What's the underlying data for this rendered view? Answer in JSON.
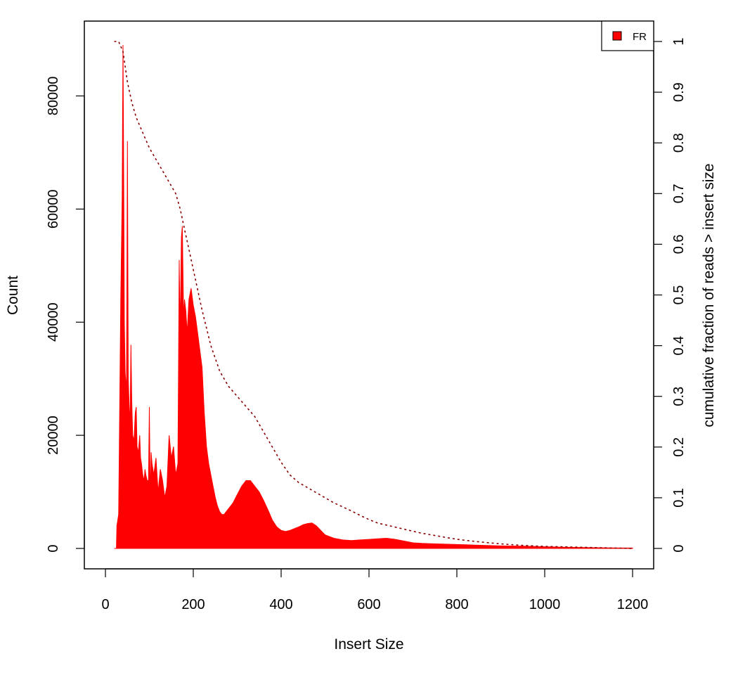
{
  "chart_data": {
    "type": "area",
    "title": "",
    "xlabel": "Insert Size",
    "ylabel": "Count",
    "y2label": "cumulative fraction of reads > insert size",
    "xlim": [
      0,
      1200
    ],
    "ylim": [
      0,
      90000
    ],
    "y2lim": [
      0,
      1
    ],
    "grid": false,
    "legend": {
      "position": "top-right",
      "entries": [
        {
          "name": "FR",
          "color": "#ff0000"
        }
      ]
    },
    "x_ticks": [
      "0",
      "200",
      "400",
      "600",
      "800",
      "1000",
      "1200"
    ],
    "y_ticks": [
      "0",
      "20000",
      "40000",
      "60000",
      "80000"
    ],
    "y2_ticks": [
      "0",
      "0.1",
      "0.2",
      "0.3",
      "0.4",
      "0.5",
      "0.6",
      "0.7",
      "0.8",
      "0.9",
      "1"
    ],
    "series": [
      {
        "name": "FR",
        "color": "#ff0000",
        "axis": "left",
        "style": "filled-histogram",
        "x": [
          20,
          25,
          26,
          30,
          32,
          35,
          38,
          40,
          42,
          43,
          45,
          48,
          50,
          52,
          54,
          56,
          58,
          60,
          62,
          65,
          68,
          70,
          72,
          75,
          78,
          80,
          82,
          85,
          88,
          90,
          92,
          95,
          98,
          100,
          102,
          104,
          106,
          110,
          115,
          120,
          125,
          130,
          135,
          140,
          145,
          150,
          155,
          160,
          165,
          168,
          170,
          173,
          175,
          178,
          180,
          183,
          186,
          190,
          195,
          200,
          205,
          210,
          215,
          220,
          225,
          230,
          235,
          240,
          245,
          250,
          255,
          260,
          265,
          270,
          280,
          290,
          300,
          310,
          320,
          330,
          340,
          350,
          360,
          370,
          380,
          390,
          400,
          410,
          420,
          430,
          440,
          450,
          460,
          470,
          480,
          490,
          500,
          520,
          540,
          560,
          580,
          600,
          620,
          640,
          660,
          680,
          700,
          720,
          740,
          760,
          780,
          800,
          820,
          840,
          860,
          880,
          900,
          950,
          1000,
          1050,
          1100,
          1150,
          1200
        ],
        "y": [
          0,
          0,
          4000,
          6000,
          21000,
          45000,
          62000,
          89000,
          58000,
          40000,
          31000,
          28000,
          72000,
          30000,
          25000,
          22000,
          36000,
          26000,
          20000,
          19000,
          24000,
          25000,
          18000,
          17000,
          20000,
          16000,
          15000,
          13000,
          12000,
          14000,
          13000,
          12000,
          12000,
          25000,
          8000,
          17000,
          15000,
          13000,
          16000,
          10000,
          14000,
          12000,
          9000,
          11000,
          20000,
          16000,
          18000,
          13000,
          15000,
          51000,
          38000,
          55000,
          57000,
          40000,
          44000,
          42000,
          38000,
          44000,
          46000,
          43000,
          41000,
          38000,
          35000,
          32000,
          24000,
          18000,
          15000,
          13000,
          11000,
          9000,
          7500,
          6500,
          6000,
          6000,
          7000,
          8000,
          9500,
          11000,
          12000,
          12000,
          11000,
          10000,
          8500,
          6800,
          5000,
          3800,
          3200,
          3000,
          3200,
          3500,
          3800,
          4200,
          4400,
          4500,
          4000,
          3200,
          2400,
          1800,
          1500,
          1400,
          1500,
          1600,
          1700,
          1800,
          1600,
          1300,
          1000,
          900,
          850,
          800,
          750,
          700,
          650,
          600,
          550,
          500,
          450,
          400,
          300,
          200,
          150,
          100,
          80
        ]
      },
      {
        "name": "cumulative fraction of reads > insert size",
        "color": "#8b0000",
        "axis": "right",
        "style": "dotted-line",
        "x": [
          20,
          30,
          40,
          50,
          60,
          70,
          80,
          100,
          120,
          140,
          160,
          170,
          180,
          190,
          200,
          220,
          240,
          260,
          280,
          300,
          320,
          340,
          360,
          380,
          400,
          420,
          440,
          460,
          480,
          500,
          520,
          540,
          560,
          580,
          600,
          620,
          640,
          660,
          680,
          700,
          720,
          740,
          760,
          780,
          800,
          850,
          900,
          950,
          1000,
          1050,
          1100,
          1150,
          1200
        ],
        "y": [
          1.0,
          1.0,
          0.98,
          0.92,
          0.88,
          0.85,
          0.83,
          0.79,
          0.76,
          0.73,
          0.7,
          0.67,
          0.63,
          0.59,
          0.55,
          0.47,
          0.4,
          0.35,
          0.32,
          0.3,
          0.28,
          0.26,
          0.23,
          0.2,
          0.17,
          0.145,
          0.13,
          0.12,
          0.11,
          0.1,
          0.09,
          0.082,
          0.074,
          0.065,
          0.057,
          0.05,
          0.046,
          0.042,
          0.038,
          0.034,
          0.03,
          0.027,
          0.024,
          0.021,
          0.018,
          0.013,
          0.009,
          0.006,
          0.004,
          0.003,
          0.002,
          0.001,
          0.0
        ]
      }
    ]
  }
}
